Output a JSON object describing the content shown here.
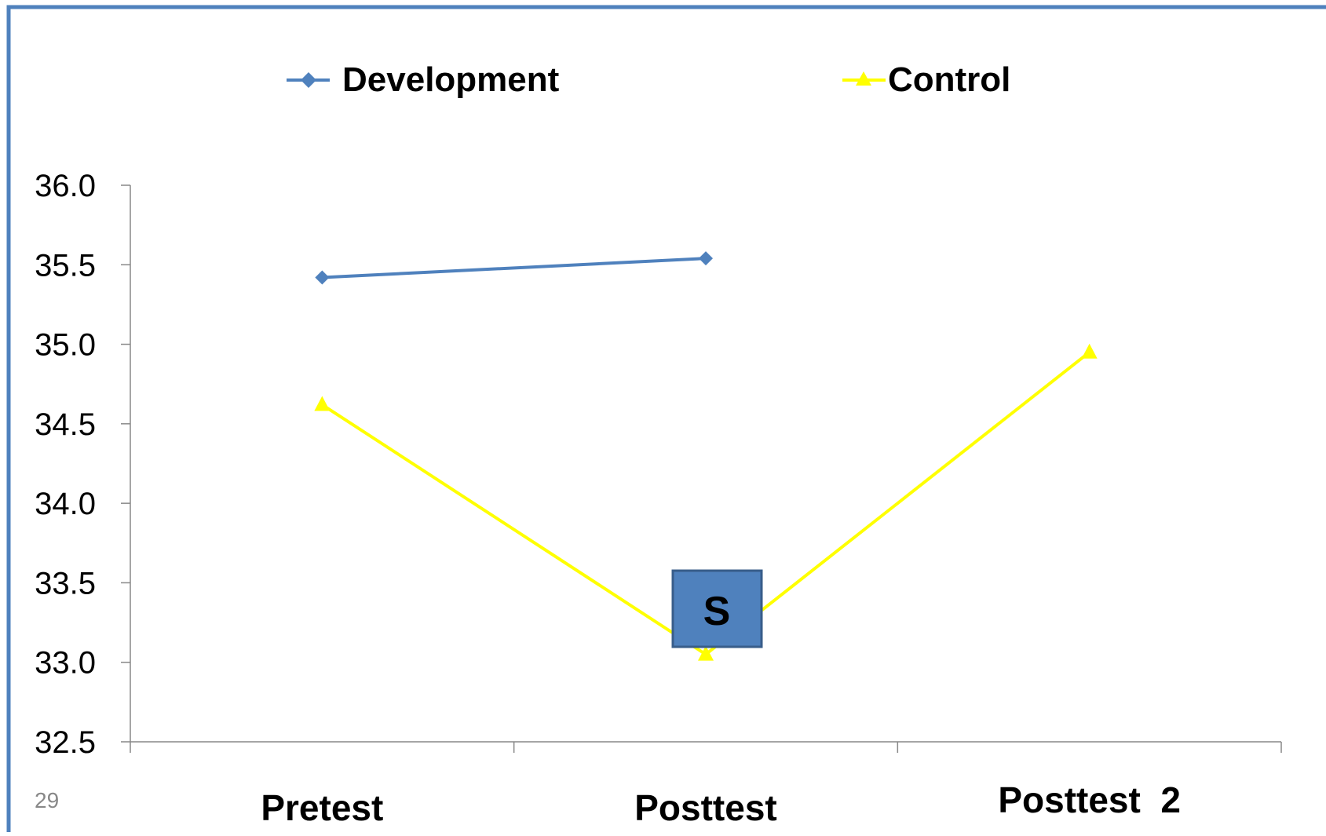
{
  "slide_number": "29",
  "marker_label": "S",
  "colors": {
    "frame": "#4F81BD",
    "development": "#4F81BD",
    "control": "#FFFF00",
    "marker_fill": "#4F81BD",
    "marker_border": "#385D8A",
    "axis": "#888888",
    "text": "#000000"
  },
  "chart_data": {
    "type": "line",
    "categories": [
      "Pretest",
      "Posttest",
      "Posttest  2"
    ],
    "series": [
      {
        "name": "Development",
        "values": [
          35.42,
          35.54,
          null
        ],
        "color": "#4F81BD",
        "marker": "diamond"
      },
      {
        "name": "Control",
        "values": [
          34.62,
          33.05,
          34.95
        ],
        "color": "#FFFF00",
        "marker": "triangle"
      }
    ],
    "y_ticks": [
      "32.5",
      "33.0",
      "33.5",
      "34.0",
      "34.5",
      "35.0",
      "35.5",
      "36.0"
    ],
    "ylim": [
      32.5,
      36.0
    ],
    "grid": false,
    "legend_position": "top",
    "annotation": {
      "text": "S",
      "category": "Posttest"
    }
  }
}
